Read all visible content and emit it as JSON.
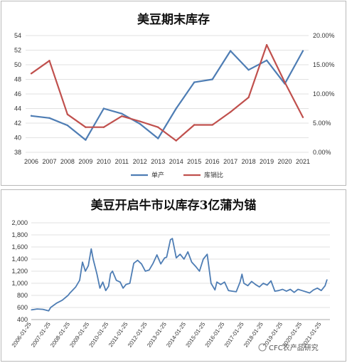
{
  "chart_data": [
    {
      "type": "line",
      "title": "美豆期末库存",
      "x": [
        "2006",
        "2007",
        "2008",
        "2009",
        "2010",
        "2011",
        "2012",
        "2013",
        "2014",
        "2015",
        "2016",
        "2017",
        "2018",
        "2019",
        "2020",
        "2021"
      ],
      "y_ticks": [
        "54",
        "52",
        "50",
        "48",
        "46",
        "44",
        "42",
        "40",
        "38"
      ],
      "ylim": [
        38,
        54
      ],
      "y2_ticks": [
        "20.00%",
        "15.00%",
        "10.00%",
        "5.00%",
        "0.00%"
      ],
      "y2lim": [
        0,
        20
      ],
      "grid": true,
      "legend": "bottom",
      "series": [
        {
          "name": "单产",
          "axis": "left",
          "color": "#4e7db4",
          "values": [
            43.0,
            42.7,
            41.7,
            39.7,
            44.0,
            43.3,
            41.9,
            39.9,
            44.0,
            47.6,
            48.0,
            51.9,
            49.3,
            50.6,
            47.4,
            51.9
          ]
        },
        {
          "name": "库销比",
          "axis": "right",
          "color": "#c0504d",
          "values": [
            13.5,
            15.7,
            6.5,
            4.3,
            4.3,
            6.2,
            5.3,
            4.3,
            2.0,
            4.7,
            4.7,
            6.9,
            9.4,
            18.4,
            12.0,
            6.0
          ]
        }
      ]
    },
    {
      "type": "line",
      "title": "美豆开启牛市以库存3亿蒲为锚",
      "x_ticks": [
        "2006-01-25",
        "2007-01-25",
        "2008-01-25",
        "2009-01-25",
        "2010-01-25",
        "2011-01-25",
        "2012-01-25",
        "2013-01-25",
        "2014-01-25",
        "2015-01-25",
        "2016-01-25",
        "2017-01-25",
        "2018-01-25",
        "2019-01-25",
        "2020-01-25",
        "2021-01-25"
      ],
      "y_ticks": [
        "2,000",
        "1,800",
        "1,600",
        "1,400",
        "1,200",
        "1,000",
        "800",
        "600",
        "400"
      ],
      "ylim": [
        400,
        2000
      ],
      "grid": true,
      "series": [
        {
          "name": "",
          "color": "#4e7db4",
          "points": [
            [
              2006.0,
              560
            ],
            [
              2006.3,
              575
            ],
            [
              2006.6,
              570
            ],
            [
              2006.9,
              545
            ],
            [
              2007.0,
              600
            ],
            [
              2007.3,
              670
            ],
            [
              2007.6,
              720
            ],
            [
              2007.9,
              800
            ],
            [
              2008.0,
              840
            ],
            [
              2008.3,
              940
            ],
            [
              2008.5,
              1050
            ],
            [
              2008.65,
              1350
            ],
            [
              2008.8,
              1200
            ],
            [
              2008.95,
              1290
            ],
            [
              2009.1,
              1570
            ],
            [
              2009.2,
              1400
            ],
            [
              2009.4,
              1150
            ],
            [
              2009.55,
              920
            ],
            [
              2009.7,
              1020
            ],
            [
              2009.85,
              880
            ],
            [
              2010.0,
              950
            ],
            [
              2010.1,
              1160
            ],
            [
              2010.2,
              1200
            ],
            [
              2010.4,
              1050
            ],
            [
              2010.6,
              1020
            ],
            [
              2010.75,
              920
            ],
            [
              2010.9,
              980
            ],
            [
              2011.1,
              1000
            ],
            [
              2011.3,
              1330
            ],
            [
              2011.5,
              1380
            ],
            [
              2011.7,
              1320
            ],
            [
              2011.9,
              1200
            ],
            [
              2012.1,
              1220
            ],
            [
              2012.3,
              1330
            ],
            [
              2012.5,
              1470
            ],
            [
              2012.7,
              1320
            ],
            [
              2012.9,
              1420
            ],
            [
              2013.0,
              1430
            ],
            [
              2013.2,
              1720
            ],
            [
              2013.3,
              1740
            ],
            [
              2013.5,
              1420
            ],
            [
              2013.7,
              1480
            ],
            [
              2013.9,
              1400
            ],
            [
              2014.1,
              1520
            ],
            [
              2014.3,
              1350
            ],
            [
              2014.5,
              1280
            ],
            [
              2014.7,
              1200
            ],
            [
              2014.9,
              1400
            ],
            [
              2015.1,
              1480
            ],
            [
              2015.3,
              1000
            ],
            [
              2015.5,
              890
            ],
            [
              2015.6,
              1020
            ],
            [
              2015.8,
              980
            ],
            [
              2016.0,
              1020
            ],
            [
              2016.2,
              880
            ],
            [
              2016.4,
              870
            ],
            [
              2016.6,
              860
            ],
            [
              2016.8,
              1020
            ],
            [
              2016.9,
              1150
            ],
            [
              2017.0,
              1000
            ],
            [
              2017.2,
              960
            ],
            [
              2017.4,
              1030
            ],
            [
              2017.6,
              980
            ],
            [
              2017.8,
              940
            ],
            [
              2018.0,
              1000
            ],
            [
              2018.2,
              970
            ],
            [
              2018.4,
              1040
            ],
            [
              2018.6,
              870
            ],
            [
              2018.8,
              880
            ],
            [
              2019.0,
              900
            ],
            [
              2019.2,
              870
            ],
            [
              2019.4,
              900
            ],
            [
              2019.6,
              850
            ],
            [
              2019.8,
              900
            ],
            [
              2020.0,
              880
            ],
            [
              2020.2,
              860
            ],
            [
              2020.4,
              840
            ],
            [
              2020.6,
              890
            ],
            [
              2020.8,
              920
            ],
            [
              2021.0,
              880
            ],
            [
              2021.2,
              960
            ],
            [
              2021.3,
              1060
            ]
          ]
        }
      ]
    }
  ],
  "watermark": {
    "text": "CFC农产品研究"
  }
}
